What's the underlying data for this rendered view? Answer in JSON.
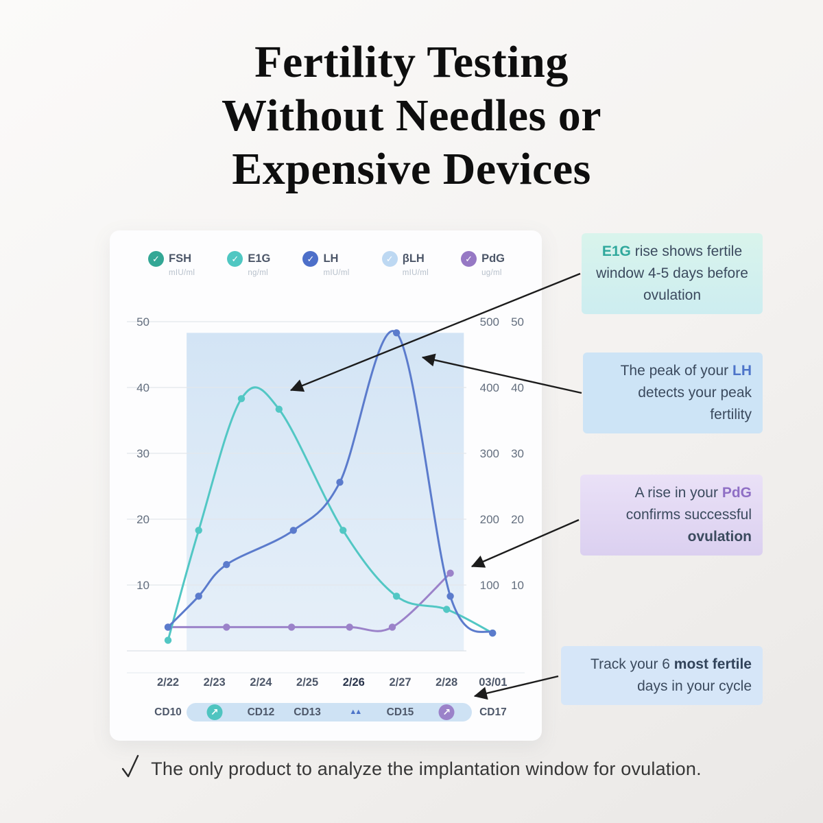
{
  "header": {
    "title_lines": [
      "Fertility Testing",
      "Without Needles or",
      "Expensive Devices"
    ]
  },
  "legend": [
    {
      "label": "FSH",
      "unit": "mIU/ml",
      "color": "#33a795"
    },
    {
      "label": "E1G",
      "unit": "ng/ml",
      "color": "#4fc7c2"
    },
    {
      "label": "LH",
      "unit": "mIU/ml",
      "color": "#4d6fc9"
    },
    {
      "label": "βLH",
      "unit": "mIU/ml",
      "color": "#bdd8f2"
    },
    {
      "label": "PdG",
      "unit": "ug/ml",
      "color": "#9678c4"
    }
  ],
  "chart_data": {
    "type": "line",
    "title": "Hormone levels across cycle days",
    "x_labels": [
      "2/22",
      "2/23",
      "2/24",
      "2/25",
      "2/26",
      "2/27",
      "2/28",
      "03/01"
    ],
    "bold_x_label": "2/26",
    "y_left_ticks": [
      50,
      40,
      30,
      20,
      10
    ],
    "y_right_ticks": [
      [
        500,
        50
      ],
      [
        400,
        40
      ],
      [
        300,
        30
      ],
      [
        200,
        20
      ],
      [
        100,
        10
      ]
    ],
    "ylim": [
      0,
      50
    ],
    "grid": true,
    "fertile_window_days": [
      0.4,
      6.37
    ],
    "series": [
      {
        "name": "PdG",
        "color": "#9b82c9",
        "points": [
          [
            0,
            3.6
          ],
          [
            1.26,
            3.6
          ],
          [
            2.66,
            3.6
          ],
          [
            3.91,
            3.6
          ],
          [
            4.83,
            3.6
          ],
          [
            6.08,
            11.8
          ]
        ]
      },
      {
        "name": "E1G",
        "color": "#52c7c4",
        "points": [
          [
            0,
            1.6
          ],
          [
            0.66,
            18.3
          ],
          [
            1.58,
            38.3
          ],
          [
            2.39,
            36.7
          ],
          [
            3.77,
            18.3
          ],
          [
            4.92,
            8.3
          ],
          [
            6.0,
            6.3
          ],
          [
            6.99,
            2.7
          ]
        ]
      },
      {
        "name": "LH",
        "color": "#5b7bcc",
        "points": [
          [
            0,
            3.6
          ],
          [
            0.66,
            8.3
          ],
          [
            1.26,
            13.1
          ],
          [
            2.7,
            18.3
          ],
          [
            3.7,
            25.6
          ],
          [
            4.92,
            48.3
          ],
          [
            6.08,
            8.3
          ],
          [
            6.99,
            2.7
          ]
        ]
      }
    ],
    "cd_items": [
      {
        "type": "text",
        "label": "CD10"
      },
      {
        "type": "icon",
        "icon": "arrow-up-right",
        "color": "#4fc4c0"
      },
      {
        "type": "text",
        "label": "CD12"
      },
      {
        "type": "text",
        "label": "CD13"
      },
      {
        "type": "icon",
        "icon": "peak",
        "color": "#4d74c9"
      },
      {
        "type": "text",
        "label": "CD15"
      },
      {
        "type": "icon",
        "icon": "arrow-up-right",
        "color": "#9b82c9"
      },
      {
        "type": "text",
        "label": "CD17"
      }
    ]
  },
  "annotations": [
    {
      "p1": "",
      "h1": "E1G",
      "p2": " rise shows fertile window 4-5 days before ovulation",
      "h2": "",
      "p3": "",
      "accent": "#2fa89c"
    },
    {
      "p1": "The peak of your ",
      "h1": "LH",
      "p2": " detects your peak fertility",
      "h2": "",
      "p3": "",
      "accent": "#4d74c9"
    },
    {
      "p1": "A rise in your ",
      "h1": "PdG",
      "p2": " confirms successful ",
      "h2": "ovulation",
      "p3": "",
      "accent": "#8f6fc5"
    },
    {
      "p1": "Track your 6 ",
      "h1": "most fertile",
      "p2": " days in your cycle",
      "h2": "",
      "p3": "",
      "accent": "#31435a"
    }
  ],
  "footer": {
    "text": "The only product to analyze the implantation window for ovulation."
  }
}
